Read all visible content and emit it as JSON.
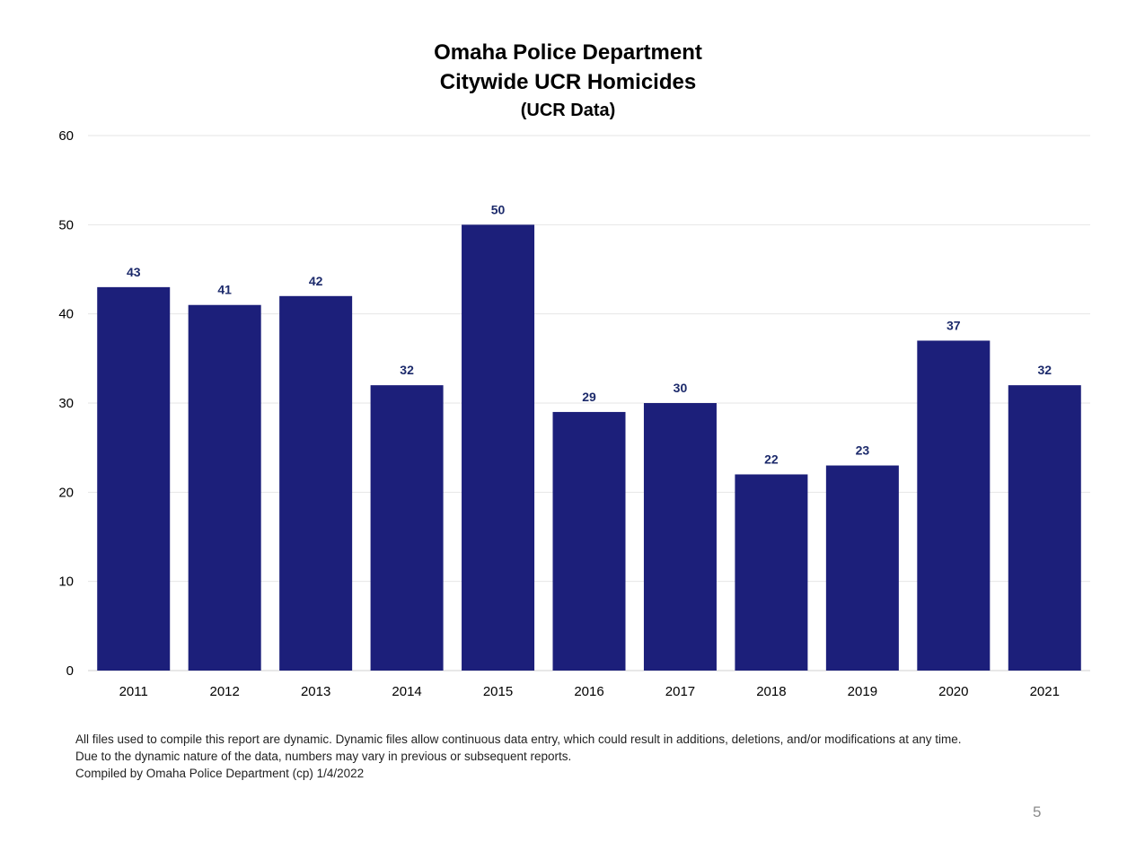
{
  "chart_data": {
    "type": "bar",
    "title": "Omaha Police Department",
    "subtitle": "Citywide UCR Homicides",
    "subtitle2": "(UCR Data)",
    "xlabel": "",
    "ylabel": "",
    "categories": [
      "2011",
      "2012",
      "2013",
      "2014",
      "2015",
      "2016",
      "2017",
      "2018",
      "2019",
      "2020",
      "2021"
    ],
    "values": [
      43,
      41,
      42,
      32,
      50,
      29,
      30,
      22,
      23,
      37,
      32
    ],
    "ylim": [
      0,
      60
    ],
    "yticks": [
      0,
      10,
      20,
      30,
      40,
      50,
      60
    ],
    "grid": true,
    "data_labels": true,
    "colors": {
      "bar": "#1c1f7a",
      "data_label": "#1c2a6b",
      "grid": "#e6e6e6",
      "tick_label": "#000000"
    }
  },
  "footnotes": [
    "All files used to compile this report are dynamic. Dynamic files allow continuous data entry, which could result in additions, deletions, and/or modifications at any time.",
    "Due to the dynamic nature of the data, numbers may vary in previous or subsequent reports.",
    "Compiled by Omaha Police Department (cp) 1/4/2022"
  ],
  "page_number": "5"
}
